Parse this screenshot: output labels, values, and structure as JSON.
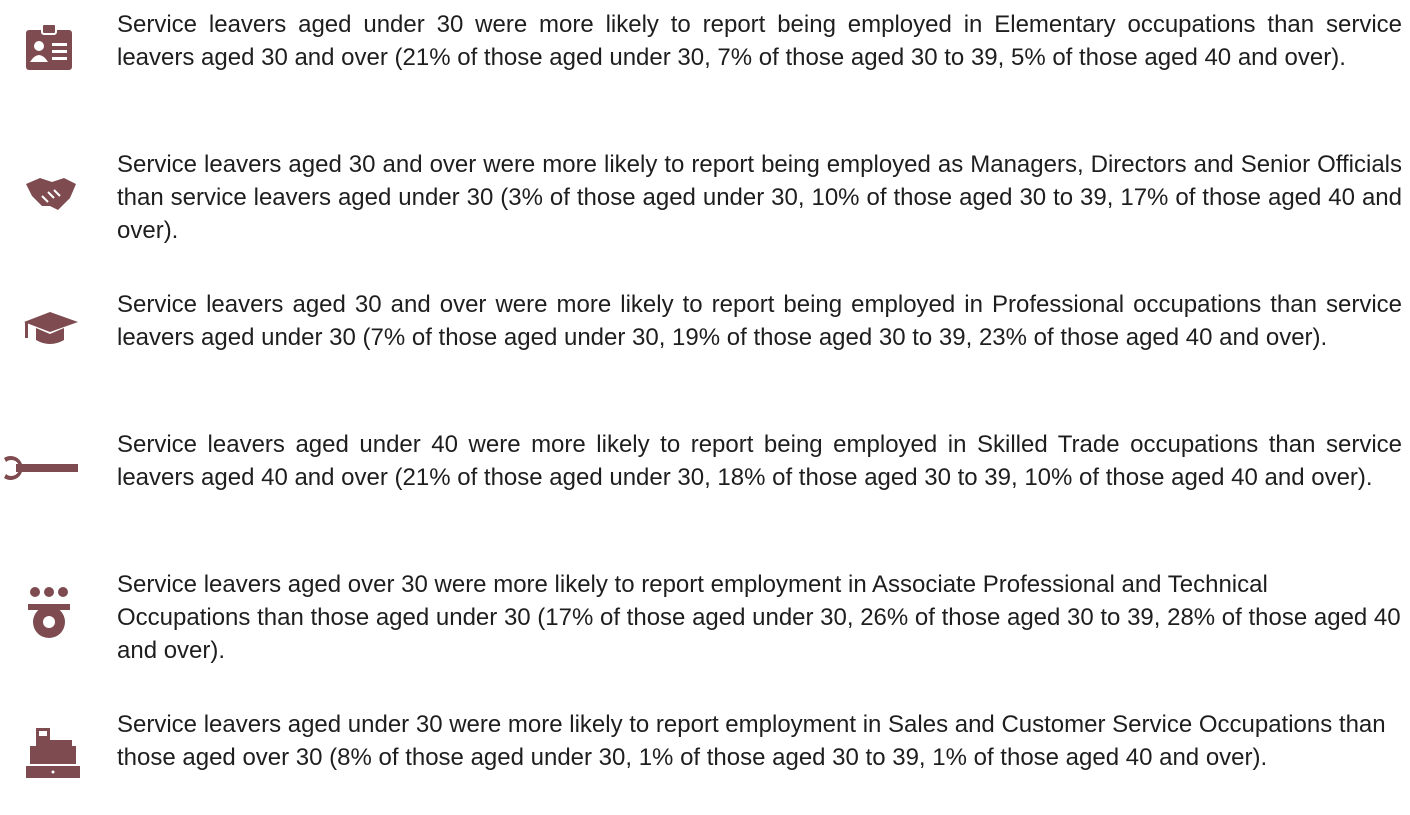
{
  "items": [
    {
      "text": "Service leavers aged under 30 were more likely to report being employed in Elementary occupations than service leavers aged 30 and over (21% of those aged under 30, 7% of those aged 30 to 39, 5% of those aged 40 and over)."
    },
    {
      "text": "Service leavers aged 30 and over were more likely to report being employed as Managers, Directors and Senior Officials than service leavers aged under 30 (3% of those aged under 30, 10% of those aged 30 to 39, 17% of those aged 40 and over)."
    },
    {
      "text": "Service leavers aged 30 and over were more likely to report being employed in Professional occupations than service leavers aged under 30 (7% of those aged under 30, 19% of those aged 30 to 39, 23% of those aged 40 and over)."
    },
    {
      "text": "Service leavers aged under 40 were more likely to report being employed in Skilled Trade occupations than service leavers aged 40 and over (21% of those aged under 30, 18% of those aged 30 to 39, 10% of those aged 40 and over)."
    },
    {
      "text": "Service leavers aged over 30 were more likely to report employment in Associate Professional and Technical Occupations than those aged under 30 (17% of those aged under 30, 26% of those aged 30 to 39, 28% of those aged 40 and over)."
    },
    {
      "text": "Service leavers aged under 30 were more likely to report employment in Sales and Customer Service Occupations than those aged over 30 (8% of those aged under 30, 1% of those aged 30 to 39, 1% of those aged 40 and over)."
    }
  ]
}
